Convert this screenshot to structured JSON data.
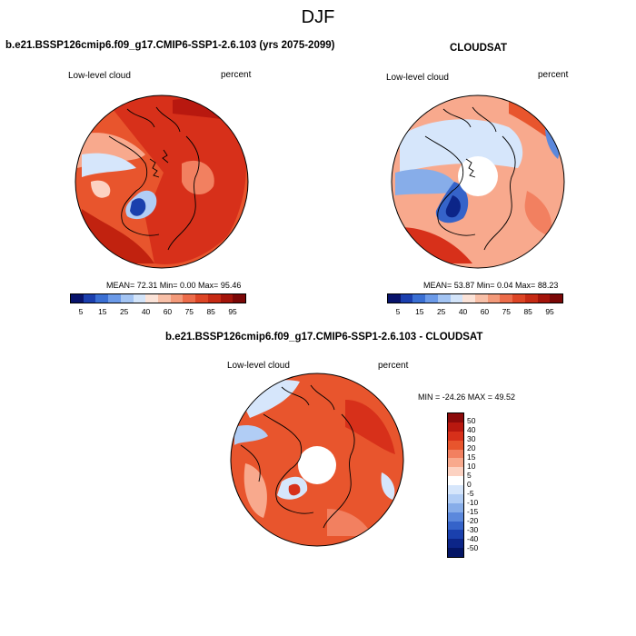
{
  "figure": {
    "title": "DJF",
    "panels": [
      {
        "title": "b.e21.BSSP126cmip6.f09_g17.CMIP6-SSP1-2.6.103 (yrs 2075-2099)",
        "left_label": "Low-level cloud",
        "right_label": "percent",
        "stats": "MEAN=  72.31  Min=   0.00  Max=  95.46",
        "colorbar_labels": [
          "5",
          "15",
          "25",
          "40",
          "60",
          "75",
          "85",
          "95"
        ],
        "colorbar_colors": [
          "#08136b",
          "#1b3fae",
          "#3a6fd3",
          "#6b9ae8",
          "#a3c4f3",
          "#d3e4f9",
          "#fbe3d8",
          "#f8c0a8",
          "#f39a7a",
          "#ec6c4a",
          "#dd4525",
          "#c62a14",
          "#a3140a",
          "#7a0706"
        ]
      },
      {
        "title": "CLOUDSAT",
        "left_label": "Low-level cloud",
        "right_label": "percent",
        "stats": "MEAN=  53.87  Min=   0.04  Max=  88.23",
        "colorbar_labels": [
          "5",
          "15",
          "25",
          "40",
          "60",
          "75",
          "85",
          "95"
        ],
        "colorbar_colors": [
          "#08136b",
          "#1b3fae",
          "#3a6fd3",
          "#6b9ae8",
          "#a3c4f3",
          "#d3e4f9",
          "#fbe3d8",
          "#f8c0a8",
          "#f39a7a",
          "#ec6c4a",
          "#dd4525",
          "#c62a14",
          "#a3140a",
          "#7a0706"
        ]
      },
      {
        "title": "b.e21.BSSP126cmip6.f09_g17.CMIP6-SSP1-2.6.103 - CLOUDSAT",
        "left_label": "Low-level cloud",
        "right_label": "percent",
        "stats": "MIN = -24.26 MAX =  49.52",
        "colorbar_labels": [
          "50",
          "40",
          "30",
          "20",
          "15",
          "10",
          "5",
          "0",
          "-5",
          "-10",
          "-15",
          "-20",
          "-30",
          "-40",
          "-50"
        ],
        "colorbar_colors": [
          "#8b0a0a",
          "#b8180f",
          "#d7301a",
          "#e8552d",
          "#f28060",
          "#f8a98d",
          "#fcd2c2",
          "#ffffff",
          "#d6e6fb",
          "#b1cdf5",
          "#87ade9",
          "#5b88dc",
          "#3563c9",
          "#1a40ad",
          "#0c2588",
          "#041565"
        ]
      }
    ]
  }
}
